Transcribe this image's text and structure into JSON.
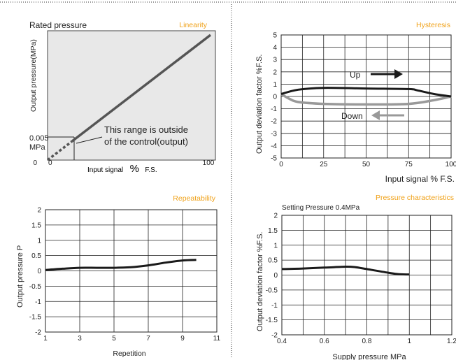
{
  "colors": {
    "accent": "#f0a21a",
    "curve": "#1a1a1a",
    "line": "#555555",
    "down": "#999999",
    "grid": "#222222",
    "panel_bg": "#e8e8e8"
  },
  "chart_data": [
    {
      "type": "line",
      "title": "Linearity",
      "heading": "Rated pressure",
      "xlabel_text": "Input signal",
      "xlabel_pct": "%",
      "xlabel_unit": "F.S.",
      "ylabel": "Output pressure(MPa)",
      "ylim_label": "0.005",
      "ylim_unit": "MPa",
      "x_ticks": [
        "0",
        "100"
      ],
      "y_tick_zero": "0",
      "x": [
        15,
        100
      ],
      "y": [
        0.15,
        1.0
      ],
      "dashed_segment": {
        "x": [
          0,
          15
        ],
        "y": [
          0.0,
          0.15
        ]
      },
      "annotation_line1": "This range is outside",
      "annotation_line2": "of the control(output)",
      "grid": false
    },
    {
      "type": "line",
      "title": "Hysteresis",
      "xlabel": "Input signal % F.S.",
      "ylabel": "Output deviation factor %F.S.",
      "xlim": [
        0,
        100
      ],
      "ylim": [
        -5,
        5
      ],
      "x_ticks": [
        0,
        25,
        50,
        75,
        100
      ],
      "x_tick_labels": [
        "0",
        "25",
        "50",
        "75",
        "100"
      ],
      "y_ticks": [
        5,
        4,
        3,
        2,
        1,
        0,
        -1,
        -2,
        -3,
        -4,
        -5
      ],
      "y_tick_labels": [
        "5",
        "4",
        "3",
        "2",
        "1",
        "0",
        "-1",
        "-2",
        "-3",
        "-4",
        "-5"
      ],
      "grid": true,
      "series": [
        {
          "name": "Up",
          "x": [
            0,
            10,
            25,
            50,
            75,
            80,
            90,
            100
          ],
          "y": [
            0.2,
            0.55,
            0.7,
            0.65,
            0.6,
            0.5,
            0.2,
            0.0
          ]
        },
        {
          "name": "Down",
          "x": [
            100,
            90,
            75,
            50,
            25,
            10,
            5,
            0
          ],
          "y": [
            0.0,
            -0.3,
            -0.6,
            -0.65,
            -0.6,
            -0.45,
            -0.2,
            0.2
          ]
        }
      ],
      "arrow_up_label": "Up",
      "arrow_down_label": "Down"
    },
    {
      "type": "line",
      "title": "Repeatability",
      "xlabel": "Repetition",
      "ylabel": "Output pressure P",
      "xlim": [
        1,
        11
      ],
      "ylim": [
        -2,
        2
      ],
      "x_ticks": [
        1,
        3,
        5,
        7,
        9,
        11
      ],
      "x_tick_labels": [
        "1",
        "3",
        "5",
        "7",
        "9",
        "11"
      ],
      "y_ticks": [
        2,
        1.5,
        1,
        0.5,
        0,
        -0.5,
        -1,
        -1.5,
        -2
      ],
      "y_tick_labels": [
        "2",
        "1.5",
        "1",
        "0.5",
        "0",
        "-0.5",
        "-1",
        "-1.5",
        "-2"
      ],
      "grid": true,
      "series": [
        {
          "x": [
            1,
            2,
            3,
            4,
            5,
            6,
            7,
            8,
            9,
            9.8
          ],
          "y": [
            0.03,
            0.07,
            0.1,
            0.1,
            0.1,
            0.12,
            0.18,
            0.27,
            0.34,
            0.36
          ]
        }
      ]
    },
    {
      "type": "line",
      "title": "Pressure characteristics",
      "subtitle": "Setting Pressure 0.4MPa",
      "xlabel": "Supply pressure MPa",
      "ylabel": "Output deviation factor %F.S.",
      "xlim": [
        0.4,
        1.2
      ],
      "ylim": [
        -2,
        2
      ],
      "x_ticks": [
        0.4,
        0.6,
        0.8,
        1.0,
        1.2
      ],
      "x_tick_labels": [
        "0.4",
        "0.6",
        "0.8",
        "1",
        "1.2"
      ],
      "y_ticks": [
        2,
        1.5,
        1,
        0.5,
        0,
        -0.5,
        -1,
        -1.5,
        -2
      ],
      "y_tick_labels": [
        "2",
        "1.5",
        "1",
        "0.5",
        "0",
        "-0.5",
        "-1",
        "-1.5",
        "-2"
      ],
      "grid": true,
      "series": [
        {
          "x": [
            0.4,
            0.5,
            0.6,
            0.7,
            0.74,
            0.8,
            0.9,
            0.95,
            1.0
          ],
          "y": [
            0.2,
            0.22,
            0.25,
            0.28,
            0.27,
            0.2,
            0.08,
            0.03,
            0.02
          ]
        }
      ]
    }
  ]
}
